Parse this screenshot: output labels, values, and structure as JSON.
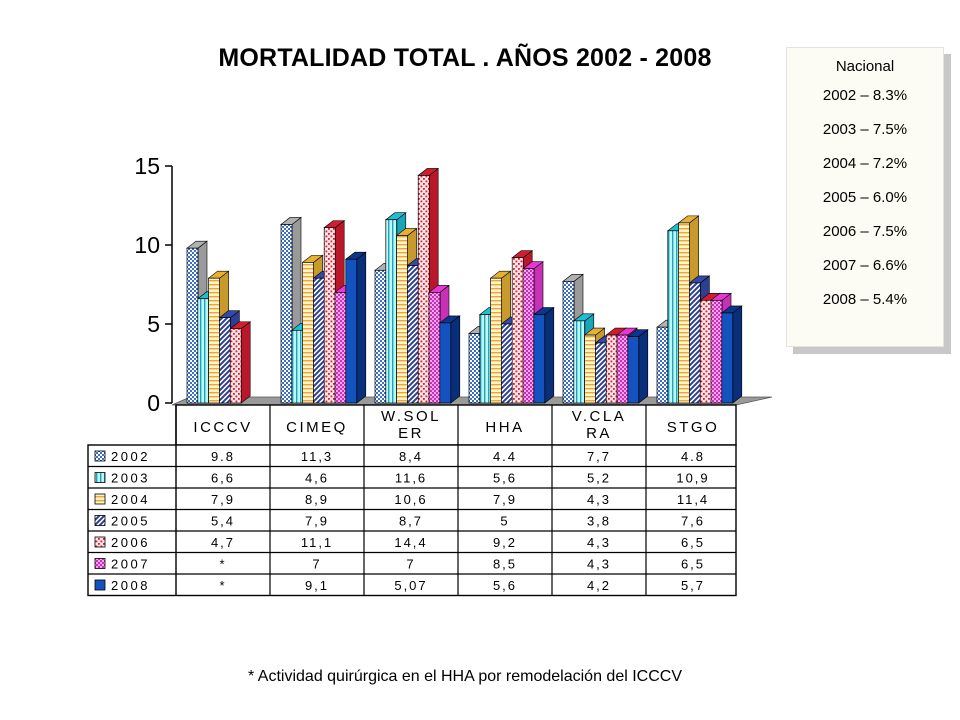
{
  "title": "MORTALIDAD TOTAL . AÑOS 2002 - 2008",
  "nacional": {
    "heading": "Nacional",
    "lines": [
      "2002 – 8.3%",
      "2003 – 7.5%",
      "2004 – 7.2%",
      "2005 – 6.0%",
      "2006 – 7.5%",
      "2007 – 6.6%",
      "2008 – 5.4%"
    ]
  },
  "footnote": "* Actividad quirúrgica en el HHA por remodelación del ICCCV",
  "colors": {
    "2002": "#ffffff",
    "2003": "#aef0f4",
    "2004": "#ffeab0",
    "2005": "#3a4fa0",
    "2006": "#d82c3c",
    "2007": "#f06ad8",
    "2008": "#1452c0",
    "wall": "#9a9a9a"
  },
  "chart_data": {
    "type": "bar",
    "title": "MORTALIDAD TOTAL . AÑOS 2002 - 2008",
    "categories": [
      "ICCCV",
      "CIMEQ",
      "W.SOLER",
      "HHA",
      "V.CLARA",
      "STGO"
    ],
    "category_labels": [
      [
        "ICCCV"
      ],
      [
        "CIMEQ"
      ],
      [
        "W.SOL",
        "ER"
      ],
      [
        "HHA"
      ],
      [
        "V.CLA",
        "RA"
      ],
      [
        "STGO"
      ]
    ],
    "ylim": [
      0,
      15
    ],
    "yticks": [
      0,
      5,
      10,
      15
    ],
    "series": [
      {
        "name": "2002",
        "values": [
          9.8,
          11.3,
          8.4,
          4.4,
          7.7,
          4.8
        ],
        "labels": [
          "9.8",
          "11,3",
          "8,4",
          "4.4",
          "7,7",
          "4.8"
        ]
      },
      {
        "name": "2003",
        "values": [
          6.6,
          4.6,
          11.6,
          5.6,
          5.2,
          10.9
        ],
        "labels": [
          "6,6",
          "4,6",
          "11,6",
          "5,6",
          "5,2",
          "10,9"
        ]
      },
      {
        "name": "2004",
        "values": [
          7.9,
          8.9,
          10.6,
          7.9,
          4.3,
          11.4
        ],
        "labels": [
          "7,9",
          "8,9",
          "10,6",
          "7,9",
          "4,3",
          "11,4"
        ]
      },
      {
        "name": "2005",
        "values": [
          5.4,
          7.9,
          8.7,
          5,
          3.8,
          7.6
        ],
        "labels": [
          "5,4",
          "7,9",
          "8,7",
          "5",
          "3,8",
          "7,6"
        ]
      },
      {
        "name": "2006",
        "values": [
          4.7,
          11.1,
          14.4,
          9.2,
          4.3,
          6.5
        ],
        "labels": [
          "4,7",
          "11,1",
          "14,4",
          "9,2",
          "4,3",
          "6,5"
        ]
      },
      {
        "name": "2007",
        "values": [
          null,
          7,
          7,
          8.5,
          4.3,
          6.5
        ],
        "labels": [
          "*",
          "7",
          "7",
          "8,5",
          "4,3",
          "6,5"
        ]
      },
      {
        "name": "2008",
        "values": [
          null,
          9.1,
          5.07,
          5.6,
          4.2,
          5.7
        ],
        "labels": [
          "*",
          "9,1",
          "5,07",
          "5,6",
          "4,2",
          "5,7"
        ]
      }
    ]
  }
}
